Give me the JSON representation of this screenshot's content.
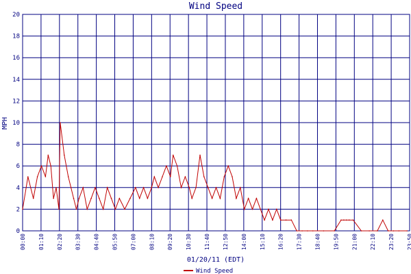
{
  "chart_data": {
    "type": "line",
    "title": "Wind Speed",
    "xlabel": "01/20/11 (EDT)",
    "ylabel": "MPH",
    "ylim": [
      0,
      20
    ],
    "yticks": [
      "0",
      "2",
      "4",
      "6",
      "8",
      "10",
      "12",
      "14",
      "16",
      "18",
      "20"
    ],
    "xticks": [
      "00:00",
      "01:10",
      "02:20",
      "03:30",
      "04:40",
      "05:50",
      "07:00",
      "08:10",
      "09:20",
      "10:30",
      "11:40",
      "12:50",
      "14:00",
      "15:10",
      "16:20",
      "17:30",
      "18:40",
      "19:50",
      "21:00",
      "22:10",
      "23:20",
      "23:50"
    ],
    "grid": true,
    "legend_position": "bottom-left",
    "series": [
      {
        "name": "Wind Speed",
        "color": "#c00000",
        "x": [
          "00:00",
          "00:20",
          "00:40",
          "00:55",
          "01:10",
          "01:25",
          "01:35",
          "01:45",
          "01:55",
          "02:05",
          "02:15",
          "02:20",
          "02:35",
          "02:50",
          "03:00",
          "03:10",
          "03:20",
          "03:30",
          "03:45",
          "04:00",
          "04:15",
          "04:30",
          "04:45",
          "05:00",
          "05:15",
          "05:30",
          "05:45",
          "06:00",
          "06:20",
          "06:40",
          "07:00",
          "07:15",
          "07:30",
          "07:45",
          "08:00",
          "08:10",
          "08:25",
          "08:40",
          "08:55",
          "09:10",
          "09:20",
          "09:35",
          "09:50",
          "10:05",
          "10:20",
          "10:30",
          "10:45",
          "11:00",
          "11:15",
          "11:30",
          "11:45",
          "12:00",
          "12:15",
          "12:30",
          "12:45",
          "13:00",
          "13:15",
          "13:30",
          "13:45",
          "14:00",
          "14:15",
          "14:30",
          "14:45",
          "15:00",
          "15:15",
          "15:30",
          "15:45",
          "16:00",
          "16:20",
          "16:40",
          "17:00",
          "17:20",
          "17:40",
          "18:00",
          "18:40",
          "19:20",
          "19:45",
          "19:55",
          "20:05",
          "20:15",
          "20:30",
          "21:00",
          "21:30",
          "22:00",
          "22:20",
          "22:40",
          "23:00",
          "23:20",
          "23:50"
        ],
        "y": [
          2,
          5,
          3,
          5,
          6,
          5,
          7,
          6,
          3,
          4,
          2,
          10,
          7,
          5,
          4,
          3,
          2,
          3,
          4,
          2,
          3,
          4,
          3,
          2,
          4,
          3,
          2,
          3,
          2,
          3,
          4,
          3,
          4,
          3,
          4,
          5,
          4,
          5,
          6,
          5,
          7,
          6,
          4,
          5,
          4,
          3,
          4,
          7,
          5,
          4,
          3,
          4,
          3,
          5,
          6,
          5,
          3,
          4,
          2,
          3,
          2,
          3,
          2,
          1,
          2,
          1,
          2,
          1,
          1,
          1,
          0,
          0,
          0,
          0,
          0,
          0,
          1,
          1,
          1,
          1,
          1,
          0,
          0,
          0,
          1,
          0,
          0,
          0,
          0
        ]
      }
    ]
  }
}
